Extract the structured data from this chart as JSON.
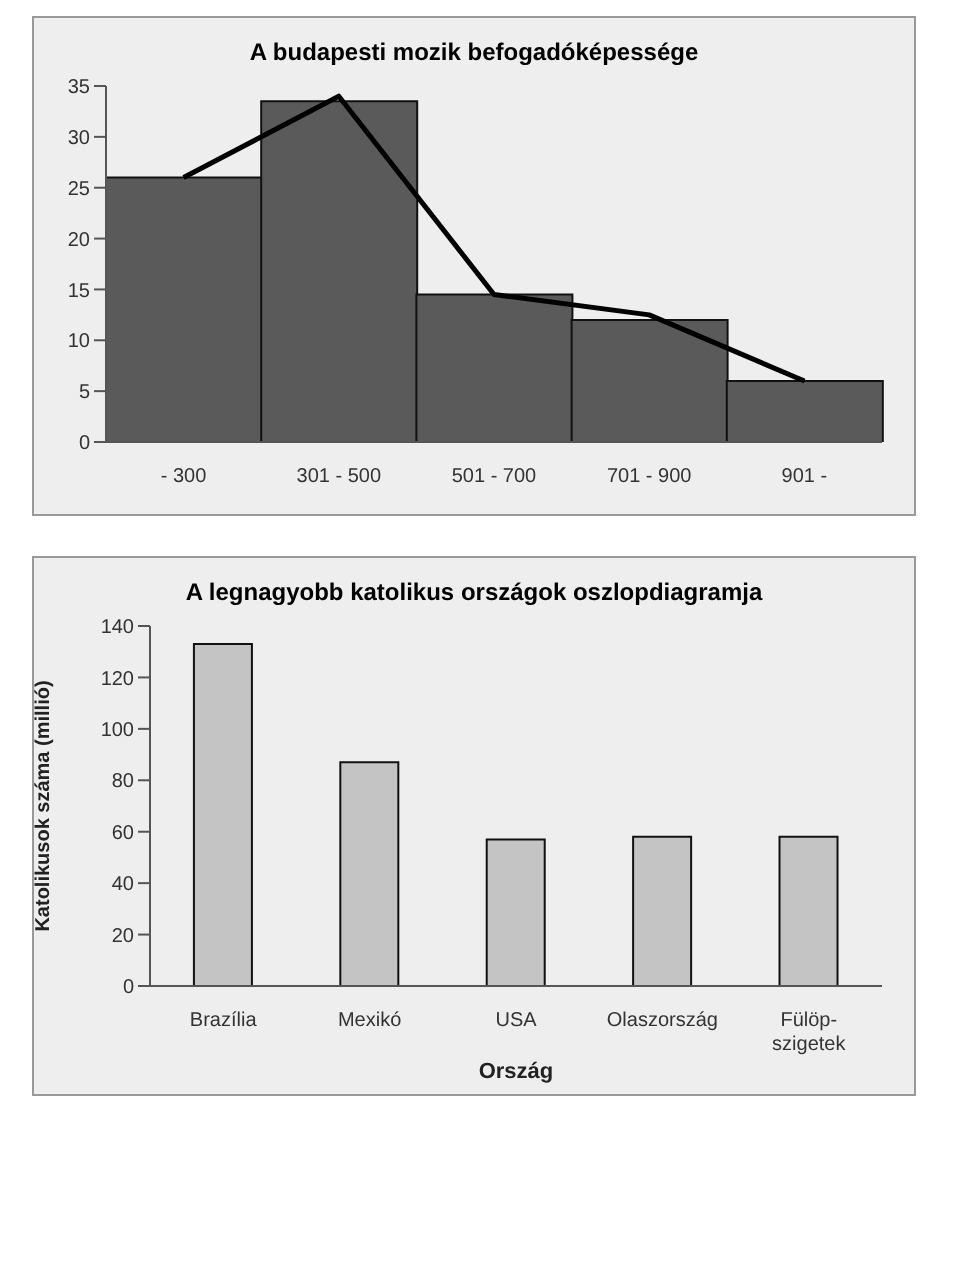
{
  "chart_data": [
    {
      "type": "bar",
      "title": "A budapesti mozik befogadóképessége",
      "categories": [
        "- 300",
        "301 - 500",
        "501 - 700",
        "701 - 900",
        "901 -"
      ],
      "series": [
        {
          "type": "bar",
          "color": "#5a5a5a",
          "values": [
            26,
            33.5,
            14.5,
            12,
            6
          ]
        },
        {
          "type": "line",
          "color": "#000000",
          "values": [
            26,
            34,
            14.5,
            12.5,
            6
          ]
        }
      ],
      "ylim": [
        0,
        35
      ],
      "yticks": [
        0,
        5,
        10,
        15,
        20,
        25,
        30,
        35
      ],
      "marker": "none",
      "line_style": "solid"
    },
    {
      "type": "bar",
      "title": "A legnagyobb katolikus országok oszlopdiagramja",
      "xlabel": "Ország",
      "ylabel": "Katolikusok száma (millió)",
      "categories": [
        "Brazília",
        "Mexikó",
        "USA",
        "Olaszország",
        "Fülöp-szigetek"
      ],
      "values": [
        133,
        87,
        57,
        58,
        58
      ],
      "color": "#c4c4c4",
      "ylim": [
        0,
        140
      ],
      "yticks": [
        0,
        20,
        40,
        60,
        80,
        100,
        120,
        140
      ]
    }
  ]
}
